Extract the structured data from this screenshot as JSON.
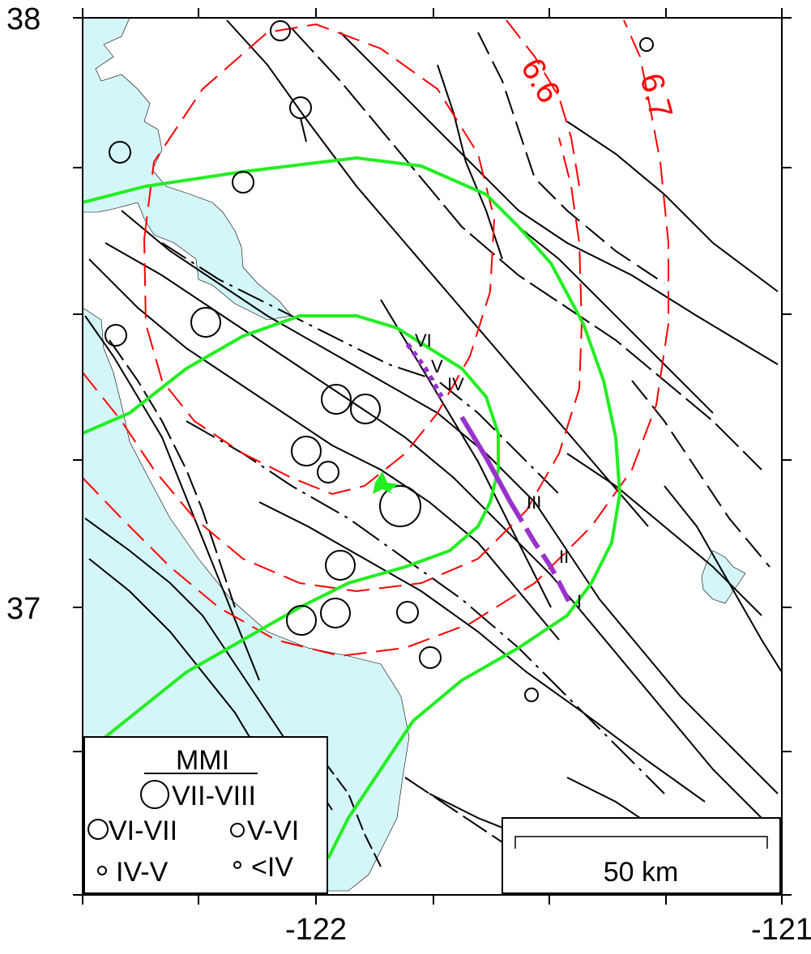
{
  "axes": {
    "lat_ticks": [
      {
        "label": "38",
        "value": 38
      },
      {
        "label": "37",
        "value": 37
      }
    ],
    "lon_ticks": [
      {
        "label": "-122",
        "value": -122
      },
      {
        "label": "-121",
        "value": -121
      }
    ]
  },
  "contours": [
    {
      "label": "6.6"
    },
    {
      "label": "6.7"
    }
  ],
  "rupture_labels": [
    "VI",
    "V",
    "IV",
    "III",
    "II",
    "I"
  ],
  "legend": {
    "title": "MMI",
    "items": [
      {
        "label": "VII-VIII",
        "size": "large"
      },
      {
        "label": "VI-VII",
        "size": "medium"
      },
      {
        "label": "V-VI",
        "size": "small"
      },
      {
        "label": "IV-V",
        "size": "smaller"
      },
      {
        "label": "<IV",
        "size": "smallest"
      }
    ]
  },
  "scale_bar": {
    "label": "50 km"
  },
  "colors": {
    "water": "#d4f6f8",
    "faults": "#000000",
    "contours": "#ff0000",
    "intensity_lines": "#22ee22",
    "rupture": "#9933cc",
    "epicenter": "#22ee22"
  }
}
